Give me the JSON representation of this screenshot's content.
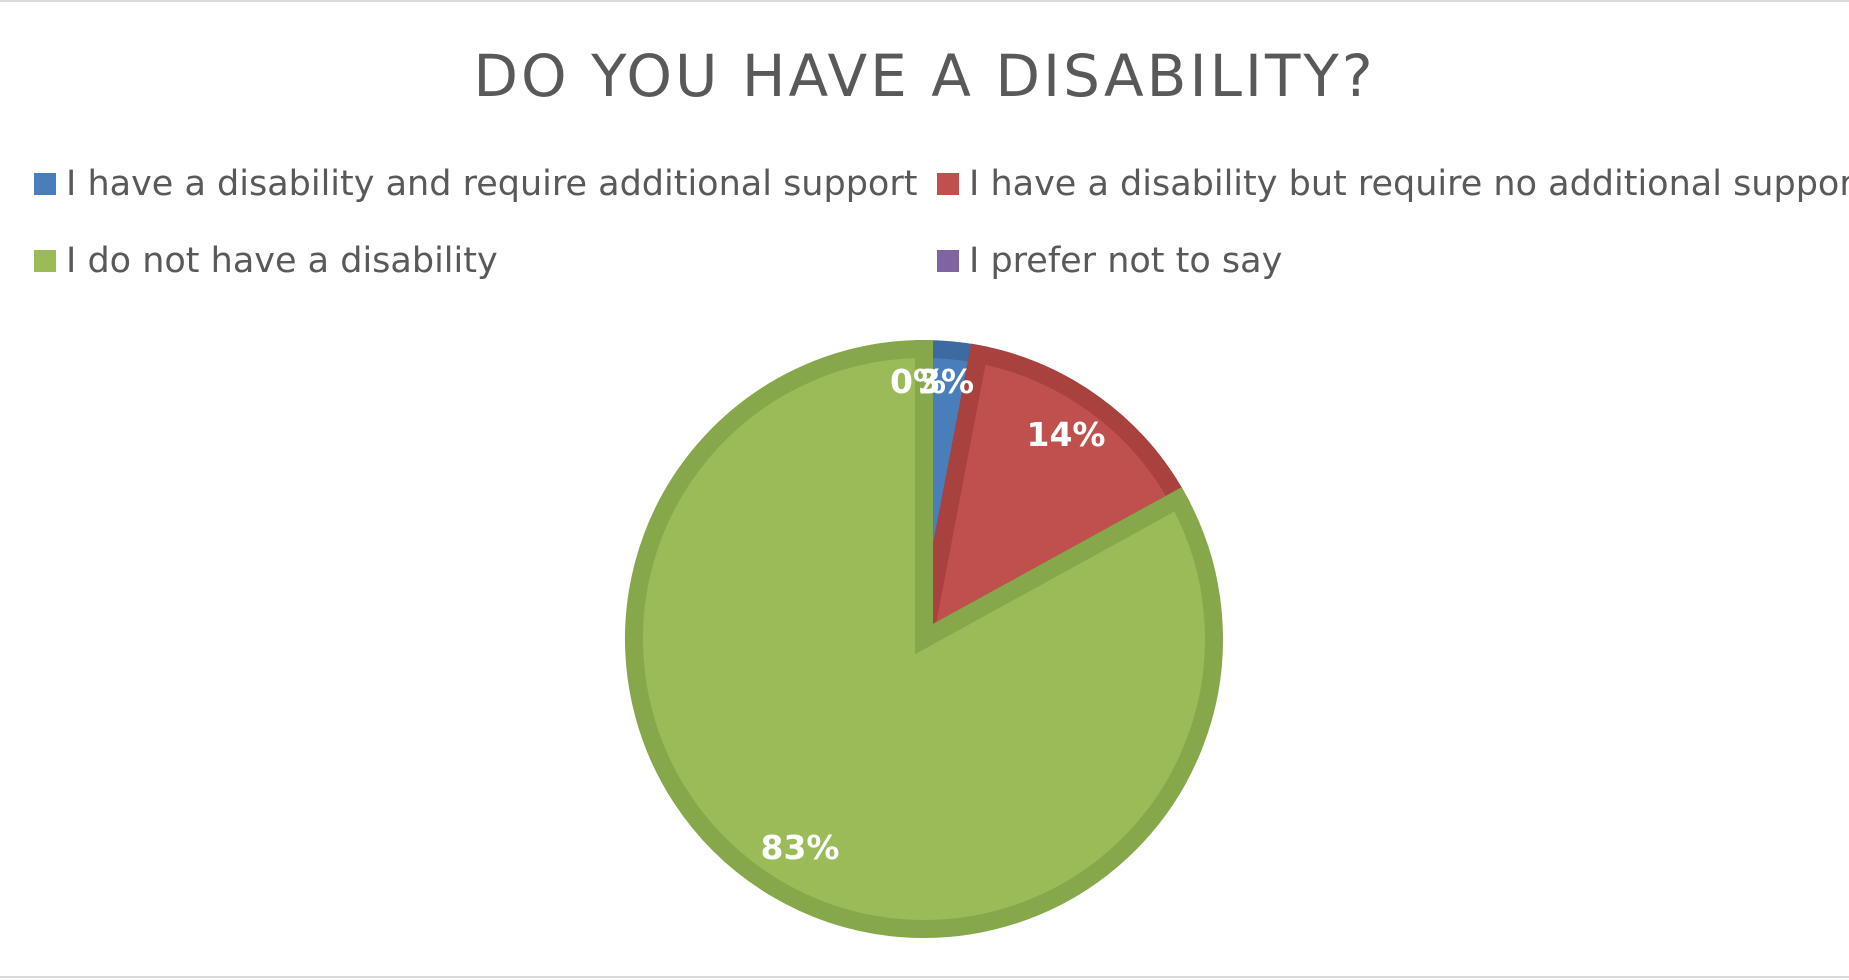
{
  "chart_data": {
    "type": "pie",
    "title": "DO YOU HAVE A DISABILITY?",
    "legend_position": "top",
    "slices": [
      {
        "name": "I have a disability and require additional support",
        "value": 3,
        "label": "3%",
        "color": "#4a7ebb",
        "border": "#3d6aa0"
      },
      {
        "name": "I have a disability but require no additional support",
        "value": 14,
        "label": "14%",
        "color": "#c0504d",
        "border": "#a9413e"
      },
      {
        "name": "I do not have a disability",
        "value": 83,
        "label": "83%",
        "color": "#9bbb59",
        "border": "#86a84a"
      },
      {
        "name": "I prefer not to say",
        "value": 0,
        "label": "0%",
        "color": "#8064a2",
        "border": "#6e5590"
      }
    ]
  }
}
